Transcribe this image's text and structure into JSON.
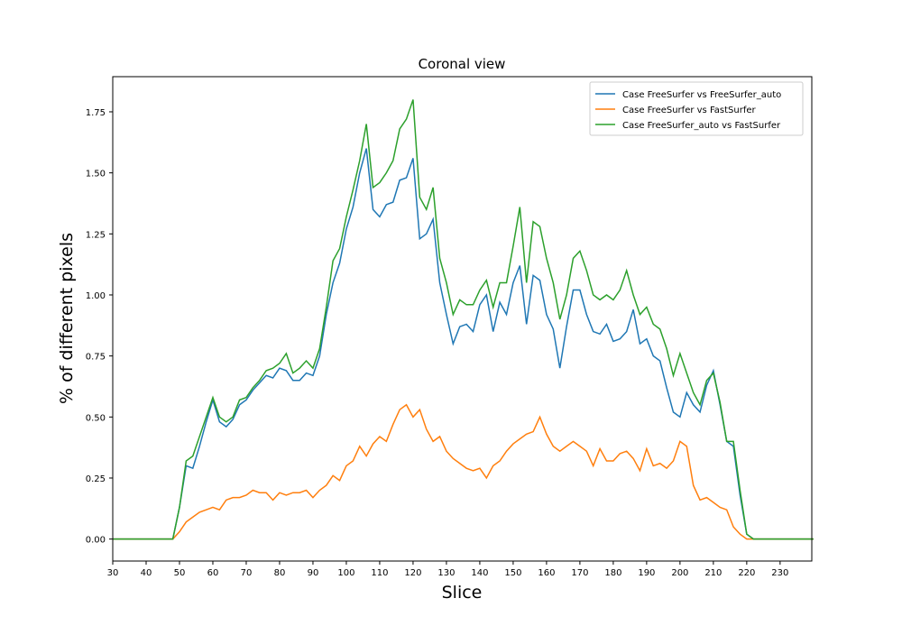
{
  "chart_data": {
    "type": "line",
    "title": "Coronal view",
    "x_label": "Slice",
    "y_label": "% of different pixels",
    "x": [
      30,
      48,
      50,
      52,
      54,
      56,
      58,
      60,
      62,
      64,
      66,
      68,
      70,
      72,
      74,
      76,
      78,
      80,
      82,
      84,
      86,
      88,
      90,
      92,
      94,
      96,
      98,
      100,
      102,
      104,
      106,
      108,
      110,
      112,
      114,
      116,
      118,
      120,
      122,
      124,
      126,
      128,
      130,
      132,
      134,
      136,
      138,
      140,
      142,
      144,
      146,
      148,
      150,
      152,
      154,
      156,
      158,
      160,
      162,
      164,
      166,
      168,
      170,
      172,
      174,
      176,
      178,
      180,
      182,
      184,
      186,
      188,
      190,
      192,
      194,
      196,
      198,
      200,
      202,
      204,
      206,
      208,
      210,
      212,
      214,
      216,
      218,
      220,
      222,
      240
    ],
    "series": [
      {
        "name": "Case FreeSurfer vs FreeSurfer_auto",
        "color": "#1f77b4",
        "values": [
          0,
          0,
          0.13,
          0.3,
          0.29,
          0.38,
          0.48,
          0.57,
          0.48,
          0.46,
          0.49,
          0.55,
          0.57,
          0.61,
          0.64,
          0.67,
          0.66,
          0.7,
          0.69,
          0.65,
          0.65,
          0.68,
          0.67,
          0.75,
          0.92,
          1.05,
          1.13,
          1.27,
          1.36,
          1.5,
          1.6,
          1.35,
          1.32,
          1.37,
          1.38,
          1.47,
          1.48,
          1.56,
          1.23,
          1.25,
          1.31,
          1.05,
          0.92,
          0.8,
          0.87,
          0.88,
          0.85,
          0.96,
          1.0,
          0.85,
          0.97,
          0.92,
          1.05,
          1.12,
          0.88,
          1.08,
          1.06,
          0.92,
          0.86,
          0.7,
          0.87,
          1.02,
          1.02,
          0.92,
          0.85,
          0.84,
          0.88,
          0.81,
          0.82,
          0.85,
          0.94,
          0.8,
          0.82,
          0.75,
          0.73,
          0.62,
          0.52,
          0.5,
          0.6,
          0.55,
          0.52,
          0.63,
          0.69,
          0.55,
          0.4,
          0.38,
          0.18,
          0.02,
          0,
          0
        ]
      },
      {
        "name": "Case FreeSurfer vs FastSurfer",
        "color": "#ff7f0e",
        "values": [
          0,
          0,
          0.03,
          0.07,
          0.09,
          0.11,
          0.12,
          0.13,
          0.12,
          0.16,
          0.17,
          0.17,
          0.18,
          0.2,
          0.19,
          0.19,
          0.16,
          0.19,
          0.18,
          0.19,
          0.19,
          0.2,
          0.17,
          0.2,
          0.22,
          0.26,
          0.24,
          0.3,
          0.32,
          0.38,
          0.34,
          0.39,
          0.42,
          0.4,
          0.47,
          0.53,
          0.55,
          0.5,
          0.53,
          0.45,
          0.4,
          0.42,
          0.36,
          0.33,
          0.31,
          0.29,
          0.28,
          0.29,
          0.25,
          0.3,
          0.32,
          0.36,
          0.39,
          0.41,
          0.43,
          0.44,
          0.5,
          0.43,
          0.38,
          0.36,
          0.38,
          0.4,
          0.38,
          0.36,
          0.3,
          0.37,
          0.32,
          0.32,
          0.35,
          0.36,
          0.33,
          0.28,
          0.37,
          0.3,
          0.31,
          0.29,
          0.32,
          0.4,
          0.38,
          0.22,
          0.16,
          0.17,
          0.15,
          0.13,
          0.12,
          0.05,
          0.02,
          0,
          0,
          0
        ]
      },
      {
        "name": "Case FreeSurfer_auto vs FastSurfer",
        "color": "#2ca02c",
        "values": [
          0,
          0,
          0.13,
          0.32,
          0.34,
          0.42,
          0.5,
          0.58,
          0.5,
          0.48,
          0.5,
          0.57,
          0.58,
          0.62,
          0.65,
          0.69,
          0.7,
          0.72,
          0.76,
          0.68,
          0.7,
          0.73,
          0.7,
          0.78,
          0.95,
          1.14,
          1.19,
          1.32,
          1.43,
          1.55,
          1.7,
          1.44,
          1.46,
          1.5,
          1.55,
          1.68,
          1.72,
          1.8,
          1.4,
          1.35,
          1.44,
          1.15,
          1.05,
          0.92,
          0.98,
          0.96,
          0.96,
          1.02,
          1.06,
          0.95,
          1.05,
          1.05,
          1.2,
          1.36,
          1.05,
          1.3,
          1.28,
          1.15,
          1.05,
          0.9,
          1.0,
          1.15,
          1.18,
          1.1,
          1.0,
          0.98,
          1.0,
          0.98,
          1.02,
          1.1,
          1.0,
          0.92,
          0.95,
          0.88,
          0.86,
          0.78,
          0.67,
          0.76,
          0.68,
          0.6,
          0.55,
          0.65,
          0.68,
          0.56,
          0.4,
          0.4,
          0.2,
          0.02,
          0,
          0
        ]
      }
    ],
    "xlim": [
      30,
      239.5
    ],
    "ylim": [
      -0.09,
      1.894
    ],
    "xticks": [
      30,
      40,
      50,
      60,
      70,
      80,
      90,
      100,
      110,
      120,
      130,
      140,
      150,
      160,
      170,
      180,
      190,
      200,
      210,
      220,
      230
    ],
    "yticks": [
      {
        "value": 0,
        "label": "0.00"
      },
      0.25,
      {
        "value": 0.5,
        "label": "0.50"
      },
      0.75,
      {
        "value": 1,
        "label": "1.00"
      },
      1.25,
      {
        "value": 1.5,
        "label": "1.50"
      },
      1.75
    ],
    "legend": "upper right"
  }
}
